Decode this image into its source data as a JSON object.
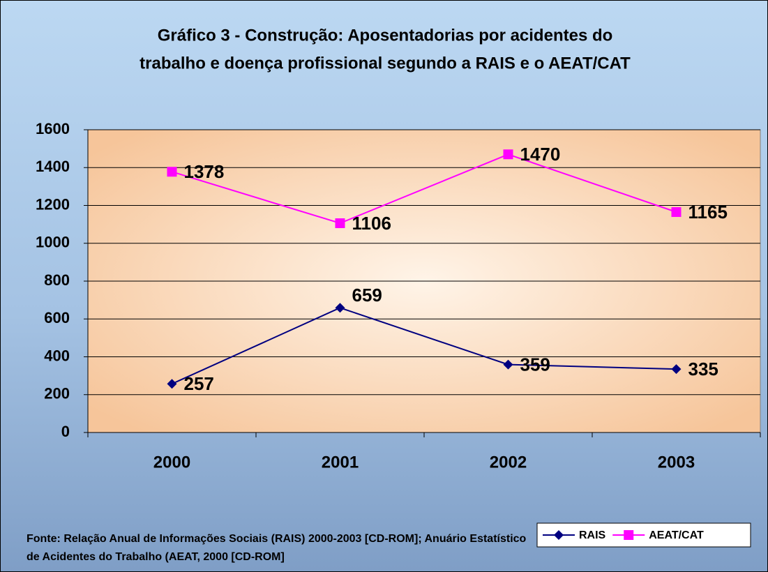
{
  "chart_data": {
    "type": "line",
    "title": [
      "Gráfico 3 - Construção: Aposentadorias por acidentes do",
      "trabalho e doença profissional segundo a RAIS e o AEAT/CAT"
    ],
    "categories": [
      "2000",
      "2001",
      "2002",
      "2003"
    ],
    "series": [
      {
        "name": "RAIS",
        "color": "#000080",
        "marker": "diamond",
        "values": [
          257,
          659,
          359,
          335
        ]
      },
      {
        "name": "AEAT/CAT",
        "color": "#ff00ff",
        "marker": "square",
        "values": [
          1378,
          1106,
          1470,
          1165
        ]
      }
    ],
    "ylim": [
      0,
      1600
    ],
    "yticks": [
      0,
      200,
      400,
      600,
      800,
      1000,
      1200,
      1400,
      1600
    ],
    "grid": true,
    "legend": "bottom-right",
    "source": [
      "Fonte: Relação Anual de Informações Sociais (RAIS) 2000-2003 [CD-ROM]; Anuário Estatístico",
      "de Acidentes do Trabalho (AEAT, 2000 [CD-ROM]"
    ]
  }
}
